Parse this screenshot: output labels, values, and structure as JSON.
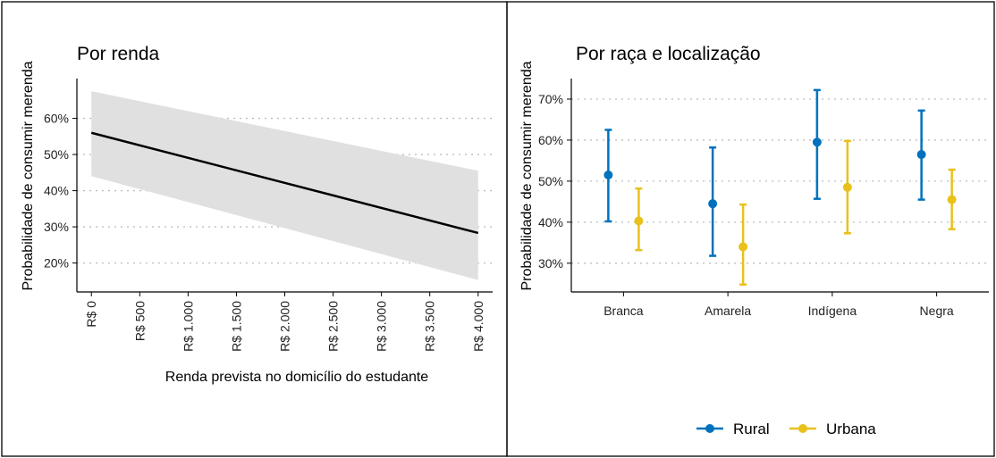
{
  "chart_data": [
    {
      "type": "line",
      "title": "Por renda",
      "xlabel": "Renda prevista no domicílio do estudante",
      "ylabel": "Probabilidade de consumir merenda",
      "x": [
        0,
        4000
      ],
      "y": [
        0.56,
        0.283
      ],
      "ci_lower": [
        0.44,
        0.153
      ],
      "ci_upper": [
        0.675,
        0.455
      ],
      "xlim": [
        -150,
        4150
      ],
      "ylim": [
        0.12,
        0.71
      ],
      "xticks": [
        0,
        500,
        1000,
        1500,
        2000,
        2500,
        3000,
        3500,
        4000
      ],
      "xtick_labels": [
        "R$ 0",
        "R$ 500",
        "R$ 1.000",
        "R$ 1.500",
        "R$ 2.000",
        "R$ 2.500",
        "R$ 3.000",
        "R$ 3.500",
        "R$ 4.000"
      ],
      "yticks": [
        0.2,
        0.3,
        0.4,
        0.5,
        0.6
      ],
      "ytick_labels": [
        "20%",
        "30%",
        "40%",
        "50%",
        "60%"
      ],
      "grid": "horizontal dotted",
      "colors": {
        "line": "#000000",
        "ribbon": "#e0e0e0",
        "grid": "#bdbdbd"
      }
    },
    {
      "type": "scatter",
      "title": "Por raça e localização",
      "xlabel": "",
      "ylabel": "Probabilidade de consumir merenda",
      "categories": [
        "Branca",
        "Amarela",
        "Indígena",
        "Negra"
      ],
      "ylim": [
        0.23,
        0.75
      ],
      "yticks": [
        0.3,
        0.4,
        0.5,
        0.6,
        0.7
      ],
      "ytick_labels": [
        "30%",
        "40%",
        "50%",
        "60%",
        "70%"
      ],
      "grid": "horizontal dotted",
      "legend": "bottom",
      "series": [
        {
          "name": "Rural",
          "color": "#0072bd",
          "values": [
            0.515,
            0.445,
            0.595,
            0.565
          ],
          "lower": [
            0.402,
            0.318,
            0.457,
            0.455
          ],
          "upper": [
            0.625,
            0.582,
            0.722,
            0.672
          ]
        },
        {
          "name": "Urbana",
          "color": "#e8c11b",
          "values": [
            0.403,
            0.34,
            0.485,
            0.455
          ],
          "lower": [
            0.332,
            0.248,
            0.373,
            0.383
          ],
          "upper": [
            0.482,
            0.443,
            0.598,
            0.528
          ]
        }
      ]
    }
  ]
}
